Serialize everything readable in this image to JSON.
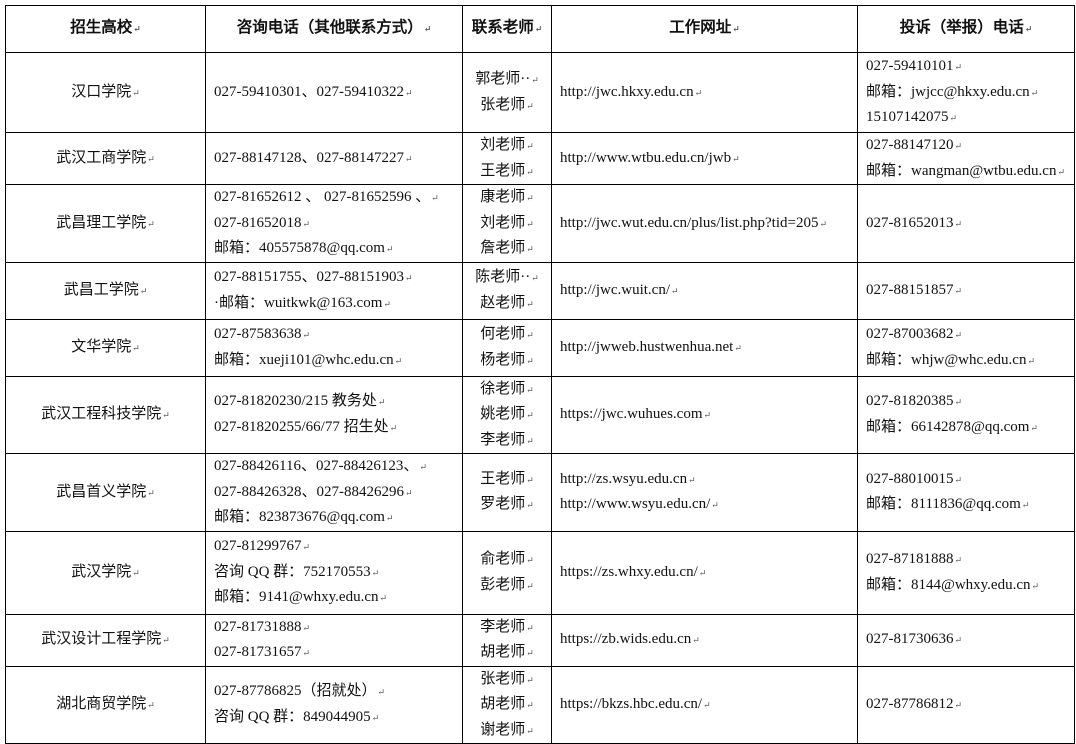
{
  "headers": [
    "招生高校",
    "咨询电话（其他联系方式）",
    "联系老师",
    "工作网址",
    "投诉（举报）电话"
  ],
  "rows": [
    {
      "college": [
        "汉口学院"
      ],
      "phone": [
        "027-59410301、027-59410322"
      ],
      "teachers": [
        "郭老师··",
        "张老师"
      ],
      "website": [
        "http://jwc.hkxy.edu.cn"
      ],
      "complaint": [
        "027-59410101",
        "邮箱：jwjcc@hkxy.edu.cn",
        "15107142075"
      ]
    },
    {
      "college": [
        "武汉工商学院"
      ],
      "phone": [
        "027-88147128、027-88147227"
      ],
      "teachers": [
        "刘老师",
        "王老师"
      ],
      "website": [
        "http://www.wtbu.edu.cn/jwb"
      ],
      "complaint": [
        "027-88147120",
        "邮箱：wangman@wtbu.edu.cn"
      ]
    },
    {
      "college": [
        "武昌理工学院"
      ],
      "phone": [
        "027-81652612 、 027-81652596 、",
        "027-81652018",
        "邮箱：405575878@qq.com"
      ],
      "teachers": [
        "康老师",
        "刘老师",
        "詹老师"
      ],
      "website": [
        "http://jwc.wut.edu.cn/plus/list.php?tid=205"
      ],
      "complaint": [
        "027-81652013"
      ]
    },
    {
      "college": [
        "武昌工学院"
      ],
      "phone": [
        "027-88151755、027-88151903",
        "·邮箱：wuitkwk@163.com"
      ],
      "teachers": [
        "陈老师··",
        "赵老师"
      ],
      "website": [
        "http://jwc.wuit.cn/"
      ],
      "complaint": [
        "027-88151857"
      ]
    },
    {
      "college": [
        "文华学院"
      ],
      "phone": [
        "027-87583638",
        "邮箱：xueji101@whc.edu.cn"
      ],
      "teachers": [
        "何老师",
        "杨老师"
      ],
      "website": [
        "http://jwweb.hustwenhua.net"
      ],
      "complaint": [
        "027-87003682",
        "邮箱：whjw@whc.edu.cn"
      ]
    },
    {
      "college": [
        "武汉工程科技学院"
      ],
      "phone": [
        "027-81820230/215 教务处",
        "027-81820255/66/77 招生处"
      ],
      "teachers": [
        "徐老师",
        "姚老师",
        "李老师"
      ],
      "website": [
        "https://jwc.wuhues.com"
      ],
      "complaint": [
        "027-81820385",
        "邮箱：66142878@qq.com"
      ]
    },
    {
      "college": [
        "武昌首义学院"
      ],
      "phone": [
        "027-88426116、027-88426123、",
        "027-88426328、027-88426296",
        "邮箱：823873676@qq.com"
      ],
      "teachers": [
        "王老师",
        "罗老师"
      ],
      "website": [
        "http://zs.wsyu.edu.cn",
        "http://www.wsyu.edu.cn/"
      ],
      "complaint": [
        "027-88010015",
        "邮箱：8111836@qq.com"
      ]
    },
    {
      "college": [
        "武汉学院"
      ],
      "phone": [
        "027-81299767",
        "咨询 QQ 群：752170553",
        "邮箱：9141@whxy.edu.cn"
      ],
      "teachers": [
        "俞老师",
        "彭老师"
      ],
      "website": [
        "https://zs.whxy.edu.cn/"
      ],
      "complaint": [
        "027-87181888",
        "邮箱：8144@whxy.edu.cn"
      ]
    },
    {
      "college": [
        "武汉设计工程学院"
      ],
      "phone": [
        "027-81731888",
        "027-81731657"
      ],
      "teachers": [
        "李老师",
        "胡老师"
      ],
      "website": [
        "https://zb.wids.edu.cn"
      ],
      "complaint": [
        "027-81730636"
      ]
    },
    {
      "college": [
        "湖北商贸学院"
      ],
      "phone": [
        "027-87786825（招就处）",
        "咨询 QQ 群：849044905"
      ],
      "teachers": [
        "张老师",
        "胡老师",
        "谢老师"
      ],
      "website": [
        "https://bkzs.hbc.edu.cn/"
      ],
      "complaint": [
        "027-87786812"
      ]
    }
  ]
}
